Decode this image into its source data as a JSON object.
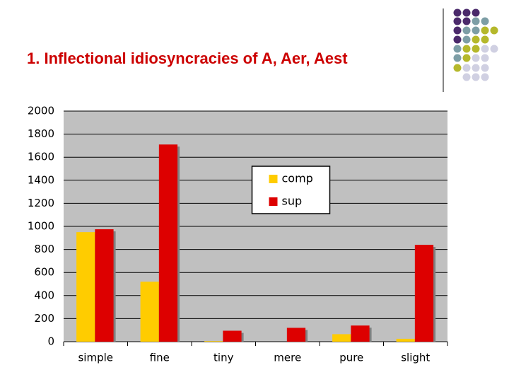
{
  "chart_data": {
    "type": "bar",
    "title": "1. Inflectional idiosyncracies of A, Aer, Aest",
    "categories": [
      "simple",
      "fine",
      "tiny",
      "mere",
      "pure",
      "slight"
    ],
    "series": [
      {
        "name": "comp",
        "color": "#ffcc00",
        "values": [
          950,
          520,
          5,
          0,
          65,
          25
        ]
      },
      {
        "name": "sup",
        "color": "#dd0000",
        "values": [
          975,
          1710,
          95,
          120,
          140,
          840
        ]
      }
    ],
    "ylim": [
      0,
      2000
    ],
    "yticks": [
      0,
      200,
      400,
      600,
      800,
      1000,
      1200,
      1400,
      1600,
      1800,
      2000
    ],
    "grid": true,
    "legend_position": "upper center"
  }
}
